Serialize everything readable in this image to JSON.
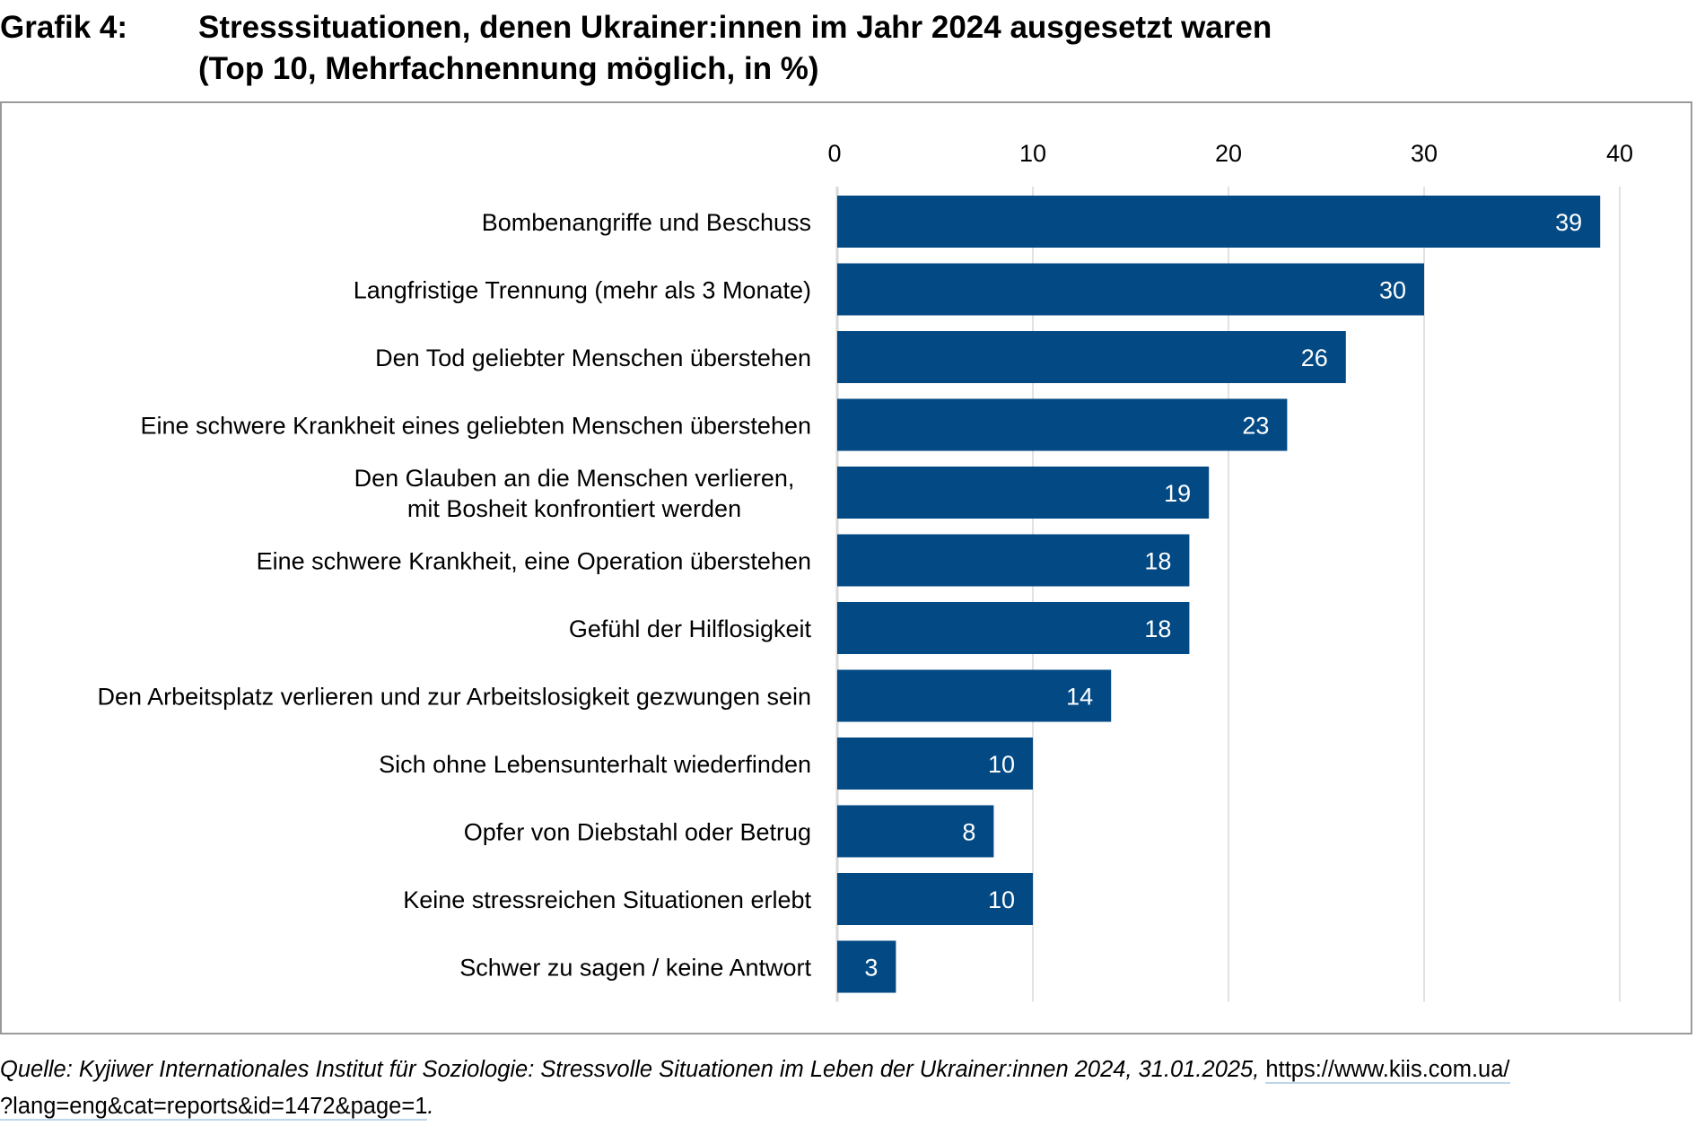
{
  "header": {
    "label": "Grafik 4:",
    "title_line1": "Stresssituationen, denen Ukrainer:innen im Jahr 2024 ausgesetzt waren",
    "title_line2": "(Top 10, Mehrfachnennung möglich, in %)"
  },
  "source": {
    "text": "Quelle: Kyjiwer Internationales Institut für Soziologie: Stressvolle Situationen im Leben der Ukrainer:innen 2024, 31.01.2025, ",
    "link_part1": "https://www.kiis.com.ua/",
    "link_part2": "?lang=eng&cat=reports&id=1472&page=1",
    "trailing": "."
  },
  "colors": {
    "bar": "#034a85",
    "bar_label": "#ffffff",
    "grid": "#d9d9d9",
    "frame": "#9a9a9a"
  },
  "chart_data": {
    "type": "bar",
    "orientation": "horizontal",
    "title": "Stresssituationen, denen Ukrainer:innen im Jahr 2024 ausgesetzt waren (Top 10, Mehrfachnennung möglich, in %)",
    "xlabel": "",
    "ylabel": "",
    "xlim": [
      0,
      40
    ],
    "xticks": [
      0,
      10,
      20,
      30,
      40
    ],
    "xtick_labels": [
      "0",
      "10",
      "20",
      "30",
      "40"
    ],
    "axis_position": "top",
    "grid": true,
    "legend": "none",
    "categories": [
      [
        "Bombenangriffe und Beschuss"
      ],
      [
        "Langfristige Trennung (mehr als 3 Monate)"
      ],
      [
        "Den Tod geliebter Menschen überstehen"
      ],
      [
        "Eine schwere Krankheit eines geliebten Menschen überstehen"
      ],
      [
        "Den Glauben an die Menschen verlieren,",
        "mit Bosheit konfrontiert werden"
      ],
      [
        "Eine schwere Krankheit, eine Operation überstehen"
      ],
      [
        "Gefühl der Hilflosigkeit"
      ],
      [
        "Den Arbeitsplatz verlieren und zur Arbeitslosigkeit gezwungen sein"
      ],
      [
        "Sich ohne Lebensunterhalt wiederfinden"
      ],
      [
        "Opfer von Diebstahl oder Betrug"
      ],
      [
        "Keine stressreichen Situationen erlebt"
      ],
      [
        "Schwer zu sagen / keine Antwort"
      ]
    ],
    "values": [
      39,
      30,
      26,
      23,
      19,
      18,
      18,
      14,
      10,
      8,
      10,
      3
    ],
    "data_labels": [
      "39",
      "30",
      "26",
      "23",
      "19",
      "18",
      "18",
      "14",
      "10",
      "8",
      "10",
      "3"
    ]
  }
}
